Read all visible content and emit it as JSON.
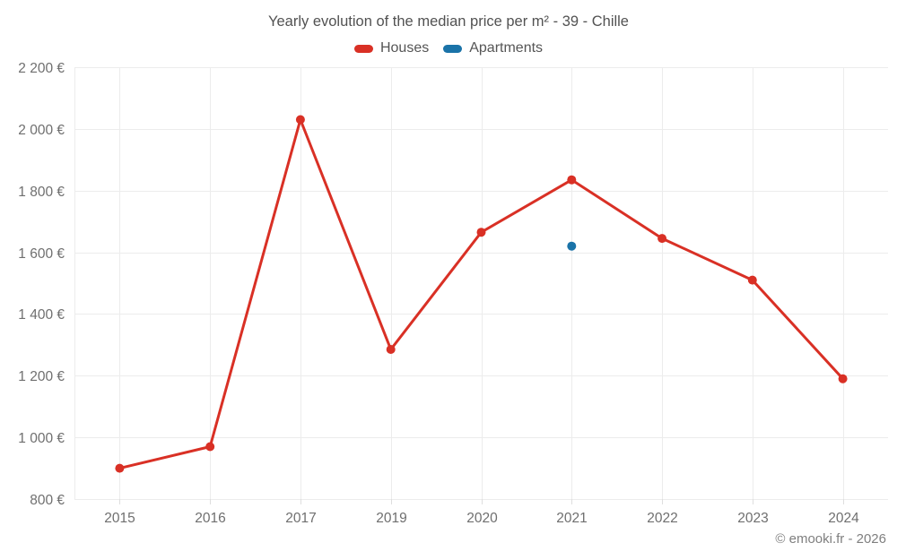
{
  "chart_data": {
    "type": "line",
    "title": "Yearly evolution of the median price per m² - 39 - Chille",
    "categories": [
      "2015",
      "2016",
      "2017",
      "2019",
      "2020",
      "2021",
      "2022",
      "2023",
      "2024"
    ],
    "series": [
      {
        "name": "Houses",
        "color": "#d93025",
        "marker": "circle",
        "values": [
          900,
          970,
          2030,
          1285,
          1665,
          1835,
          1645,
          1510,
          1190
        ]
      },
      {
        "name": "Apartments",
        "color": "#1a73a8",
        "marker": "circle",
        "values": [
          null,
          null,
          null,
          null,
          null,
          1620,
          null,
          null,
          null
        ]
      }
    ],
    "xlabel": "",
    "ylabel": "",
    "ylim": [
      800,
      2200
    ],
    "ytick_step": 200,
    "ytick_labels": [
      "800 €",
      "1 000 €",
      "1 200 €",
      "1 400 €",
      "1 600 €",
      "1 800 €",
      "2 000 €",
      "2 200 €"
    ],
    "grid": true,
    "legend_position": "top"
  },
  "footer": {
    "copyright": "© emooki.fr - 2026"
  }
}
